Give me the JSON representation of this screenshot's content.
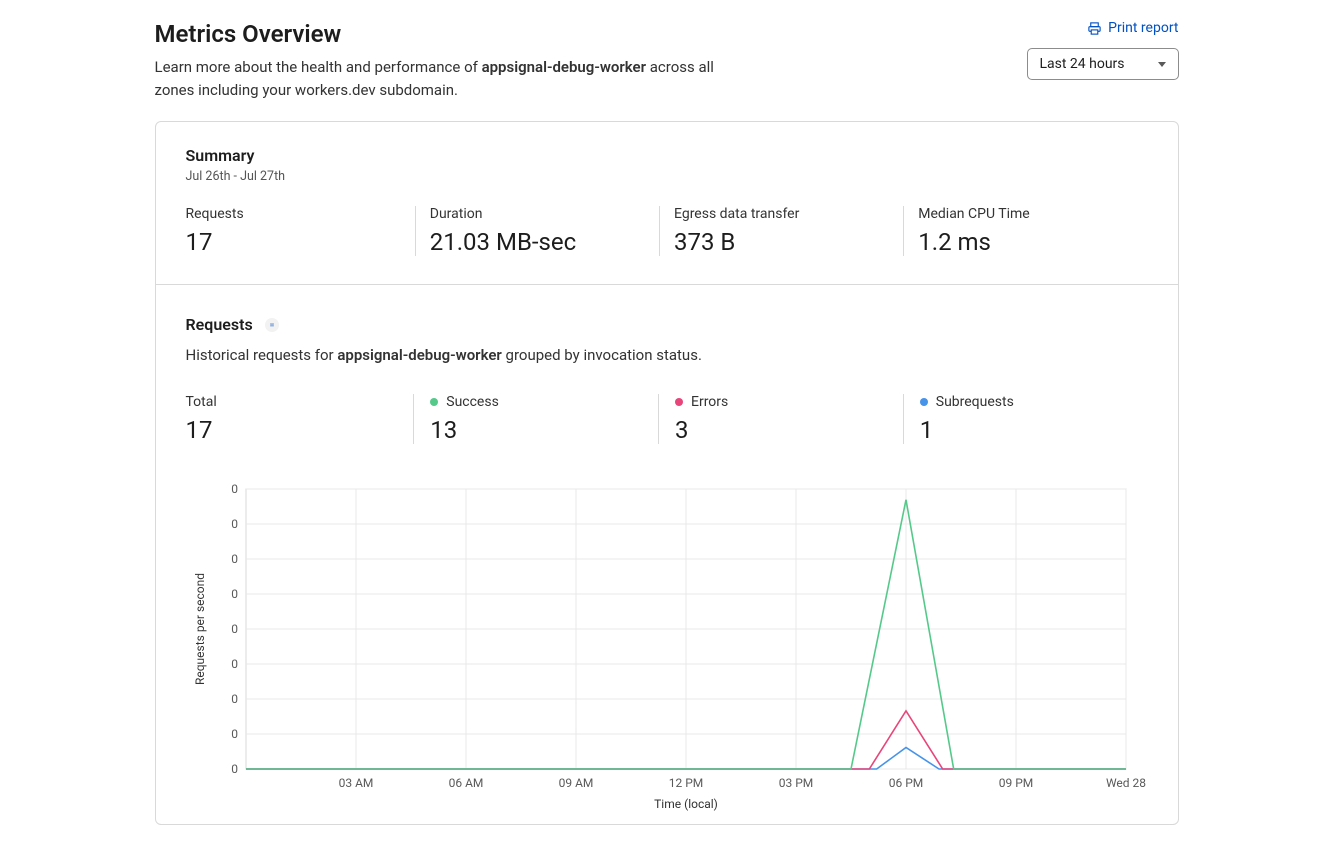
{
  "header": {
    "title": "Metrics Overview",
    "subtitle_prefix": "Learn more about the health and performance of ",
    "worker_name": "appsignal-debug-worker",
    "subtitle_suffix": " across all zones including your workers.dev subdomain.",
    "print_label": "Print report",
    "timerange_selected": "Last 24 hours"
  },
  "summary": {
    "title": "Summary",
    "date_range": "Jul 26th - Jul 27th",
    "stats": {
      "requests": {
        "label": "Requests",
        "value": "17"
      },
      "duration": {
        "label": "Duration",
        "value": "21.03 MB-sec"
      },
      "egress": {
        "label": "Egress data transfer",
        "value": "373 B"
      },
      "cpu": {
        "label": "Median CPU Time",
        "value": "1.2 ms"
      }
    }
  },
  "requests": {
    "title": "Requests",
    "desc_prefix": "Historical requests for ",
    "worker_name": "appsignal-debug-worker",
    "desc_suffix": " grouped by invocation status.",
    "totals": {
      "total": {
        "label": "Total",
        "value": "17",
        "color": null
      },
      "success": {
        "label": "Success",
        "value": "13",
        "color": "#55c98a"
      },
      "errors": {
        "label": "Errors",
        "value": "3",
        "color": "#e8457a"
      },
      "subrequests": {
        "label": "Subrequests",
        "value": "1",
        "color": "#4693ea"
      }
    }
  },
  "chart": {
    "type": "line",
    "ylabel": "Requests per second",
    "xlabel": "Time (local)",
    "x_ticks": [
      "03 AM",
      "06 AM",
      "09 AM",
      "12 PM",
      "03 PM",
      "06 PM",
      "09 PM",
      "Wed 28"
    ],
    "y_ticks": [
      "0",
      "0",
      "0",
      "0",
      "0",
      "0",
      "0",
      "0",
      "0"
    ],
    "grid_color": "#e8e8e8",
    "border_color": "#d9d9d9",
    "background_color": "#ffffff",
    "x_domain_hours": [
      0,
      24
    ],
    "x_tick_hours": [
      3,
      6,
      9,
      12,
      15,
      18,
      21,
      24
    ],
    "ymax": 13,
    "series": {
      "success": {
        "color": "#55c98a",
        "points": [
          [
            0,
            0
          ],
          [
            16.5,
            0
          ],
          [
            18,
            12.5
          ],
          [
            19.3,
            0
          ],
          [
            24,
            0
          ]
        ]
      },
      "errors": {
        "color": "#e8457a",
        "points": [
          [
            0,
            0
          ],
          [
            17,
            0
          ],
          [
            18,
            2.7
          ],
          [
            19,
            0
          ],
          [
            24,
            0
          ]
        ]
      },
      "subrequests": {
        "color": "#4693ea",
        "points": [
          [
            0,
            0
          ],
          [
            17.2,
            0
          ],
          [
            18,
            1.0
          ],
          [
            18.9,
            0
          ],
          [
            24,
            0
          ]
        ]
      }
    }
  }
}
